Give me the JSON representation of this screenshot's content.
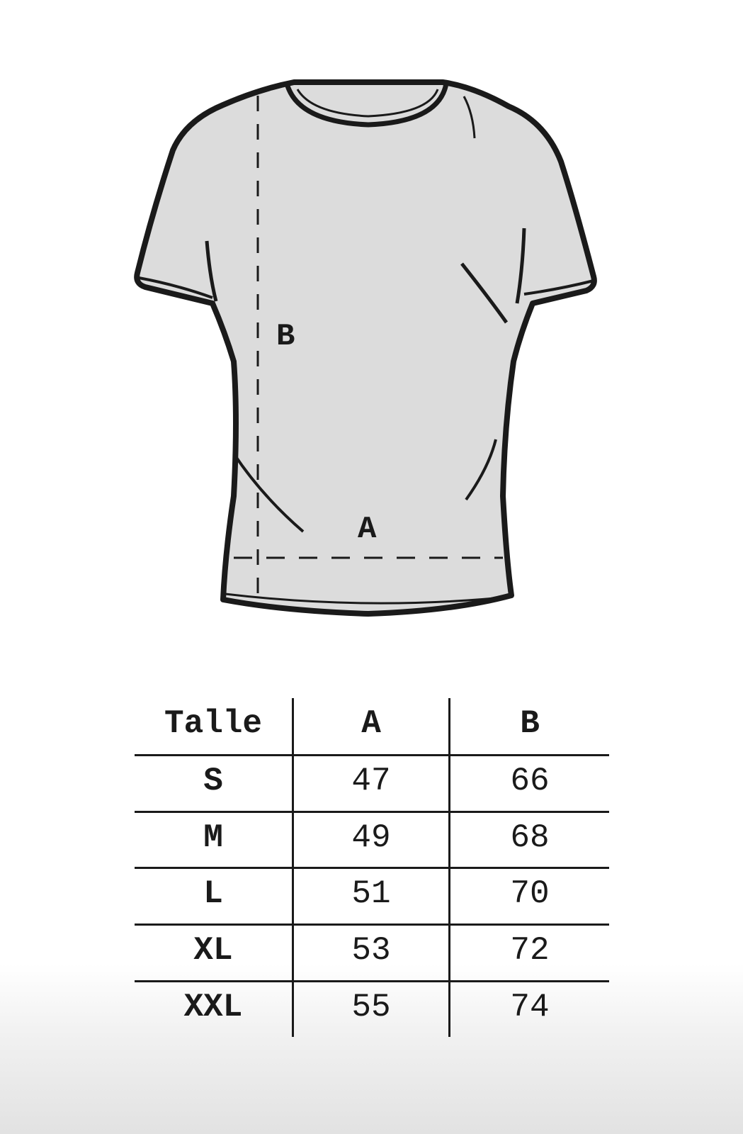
{
  "diagram": {
    "label_a": "A",
    "label_b": "B"
  },
  "table": {
    "headers": [
      "Talle",
      "A",
      "B"
    ],
    "rows": [
      [
        "S",
        "47",
        "66"
      ],
      [
        "M",
        "49",
        "68"
      ],
      [
        "L",
        "51",
        "70"
      ],
      [
        "XL",
        "53",
        "72"
      ],
      [
        "XXL",
        "55",
        "74"
      ]
    ]
  }
}
